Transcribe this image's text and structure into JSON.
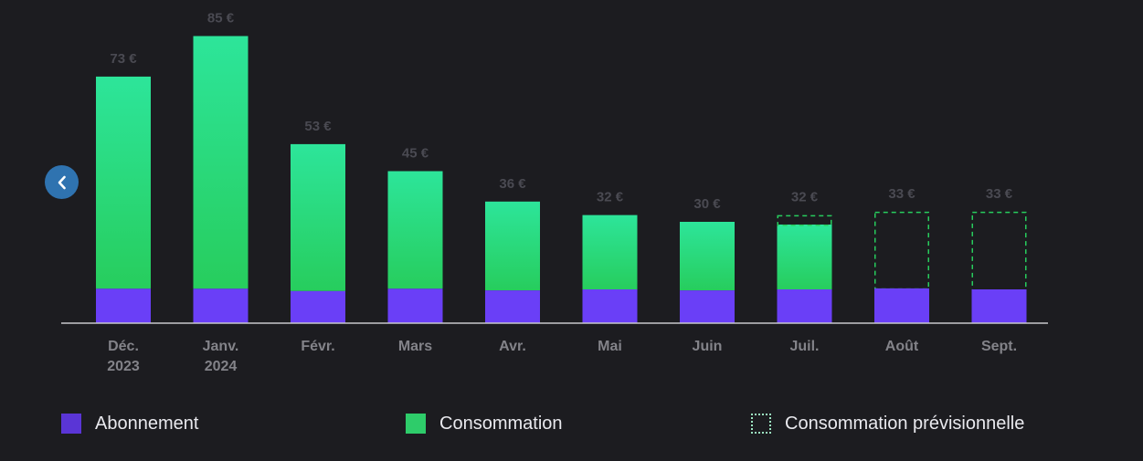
{
  "colors": {
    "background": "#1c1c20",
    "subscription": "#6a3ff7",
    "consumption_top": "#2de59a",
    "consumption_bottom": "#27cd5d",
    "forecast_outline": "#27cd5d",
    "value_label": "#4a4a52",
    "month_label": "#838389",
    "axis": "#c8c8cc",
    "nav_button": "#2f73b0"
  },
  "navigation": {
    "prev_icon": "chevron-left-icon"
  },
  "legend": [
    {
      "label": "Abonnement",
      "style": "subscription",
      "color": "#5a35d6"
    },
    {
      "label": "Consommation",
      "style": "consumption",
      "color": "#2ecc6a"
    },
    {
      "label": "Consommation prévisionnelle",
      "style": "forecast",
      "color": "#9be4c0"
    }
  ],
  "chart_data": {
    "type": "bar",
    "stacked": true,
    "grid": false,
    "ylim": [
      0,
      95
    ],
    "categories": [
      "Déc. 2023",
      "Janv. 2024",
      "Févr.",
      "Mars",
      "Avr.",
      "Mai",
      "Juin",
      "Juil.",
      "Août",
      "Sept."
    ],
    "category_lines": [
      [
        "Déc.",
        "2023"
      ],
      [
        "Janv.",
        "2024"
      ],
      [
        "Févr."
      ],
      [
        "Mars"
      ],
      [
        "Avr."
      ],
      [
        "Mai"
      ],
      [
        "Juin"
      ],
      [
        "Juil."
      ],
      [
        "Août"
      ],
      [
        "Sept."
      ]
    ],
    "series": [
      {
        "name": "Abonnement",
        "values": [
          10.2,
          10.2,
          9.5,
          10.2,
          9.7,
          10.0,
          9.7,
          10.0,
          10.3,
          10.0
        ]
      },
      {
        "name": "Consommation",
        "values": [
          62.8,
          74.8,
          43.5,
          34.8,
          26.3,
          22.0,
          20.3,
          19.2,
          0,
          0
        ]
      },
      {
        "name": "Consommation prévisionnelle",
        "values": [
          0,
          0,
          0,
          0,
          0,
          0,
          0,
          2.8,
          22.7,
          23.0
        ]
      }
    ],
    "totals": [
      73,
      85,
      53,
      45,
      36,
      32,
      30,
      32,
      33,
      33
    ],
    "total_labels": [
      "73 €",
      "85 €",
      "53 €",
      "45 €",
      "36 €",
      "32 €",
      "30 €",
      "32 €",
      "33 €",
      "33 €"
    ]
  }
}
